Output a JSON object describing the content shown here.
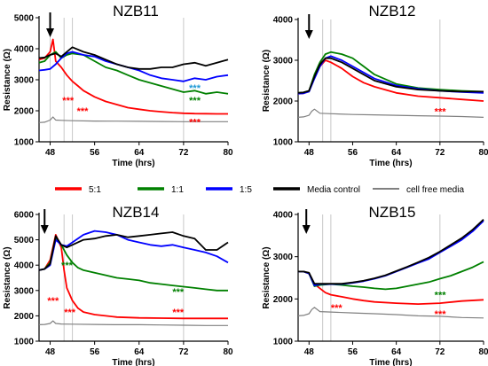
{
  "legend": {
    "items": [
      {
        "label": "5:1",
        "color": "#ff0000"
      },
      {
        "label": "1:1",
        "color": "#008000"
      },
      {
        "label": "1:5",
        "color": "#0000ff"
      },
      {
        "label": "Media control",
        "color": "#000000"
      },
      {
        "label": "cell free media",
        "color": "#808080"
      }
    ]
  },
  "chart_data": [
    {
      "type": "line",
      "title": "NZB11",
      "xlabel": "Time (hrs)",
      "ylabel": "Resistance (Ω)",
      "xlim": [
        46,
        80
      ],
      "ylim": [
        1000,
        5000
      ],
      "xticks": [
        48,
        56,
        64,
        72,
        80
      ],
      "yticks": [
        1000,
        2000,
        3000,
        4000,
        5000
      ],
      "grid": false,
      "vlines": [
        48,
        50.5,
        52,
        72
      ],
      "arrow_at_x": 48,
      "series": [
        {
          "name": "5:1",
          "color": "#ff0000",
          "x": [
            46,
            47,
            48,
            48.5,
            49,
            49.5,
            50,
            51,
            52,
            53,
            54,
            56,
            58,
            60,
            62,
            64,
            66,
            68,
            70,
            72,
            74,
            76,
            78,
            80
          ],
          "y": [
            3650,
            3700,
            3900,
            4300,
            3600,
            3500,
            3400,
            3150,
            2950,
            2800,
            2650,
            2450,
            2300,
            2200,
            2100,
            2050,
            2000,
            1970,
            1940,
            1920,
            1910,
            1905,
            1900,
            1900
          ]
        },
        {
          "name": "1:1",
          "color": "#008000",
          "x": [
            46,
            47,
            48,
            49,
            50,
            51,
            52,
            54,
            56,
            58,
            60,
            62,
            64,
            66,
            68,
            70,
            72,
            74,
            76,
            78,
            80
          ],
          "y": [
            3550,
            3600,
            3800,
            3900,
            3700,
            3800,
            3850,
            3800,
            3600,
            3400,
            3300,
            3150,
            3000,
            2900,
            2800,
            2700,
            2600,
            2650,
            2550,
            2600,
            2550
          ]
        },
        {
          "name": "1:5",
          "color": "#0000ff",
          "x": [
            46,
            47,
            48,
            49,
            50,
            51,
            52,
            53,
            54,
            56,
            58,
            60,
            62,
            64,
            66,
            68,
            70,
            72,
            74,
            76,
            78,
            80
          ],
          "y": [
            3300,
            3320,
            3350,
            3500,
            3700,
            3850,
            3900,
            3850,
            3800,
            3750,
            3600,
            3500,
            3400,
            3300,
            3150,
            3050,
            3000,
            2950,
            3050,
            3000,
            3100,
            3150
          ]
        },
        {
          "name": "Media control",
          "color": "#000000",
          "x": [
            46,
            47,
            48,
            49,
            50,
            51,
            52,
            54,
            56,
            58,
            60,
            62,
            64,
            66,
            68,
            70,
            72,
            74,
            76,
            78,
            80
          ],
          "y": [
            3700,
            3720,
            3800,
            3850,
            3750,
            3900,
            4050,
            3900,
            3800,
            3650,
            3500,
            3400,
            3350,
            3350,
            3400,
            3400,
            3500,
            3550,
            3450,
            3550,
            3650
          ]
        },
        {
          "name": "cell free media",
          "color": "#808080",
          "x": [
            46,
            47,
            48,
            48.5,
            49,
            50,
            52,
            56,
            60,
            64,
            68,
            72,
            76,
            80
          ],
          "y": [
            1620,
            1630,
            1700,
            1800,
            1700,
            1690,
            1680,
            1670,
            1665,
            1660,
            1655,
            1650,
            1650,
            1650
          ]
        }
      ],
      "annotations": [
        {
          "text": "***",
          "x": 50.2,
          "y": 2350,
          "color": "#ff0000"
        },
        {
          "text": "***",
          "x": 52.8,
          "y": 2000,
          "color": "#ff0000"
        },
        {
          "text": "***",
          "x": 73,
          "y": 2750,
          "color": "#1f9ad6"
        },
        {
          "text": "***",
          "x": 73,
          "y": 2350,
          "color": "#008000"
        },
        {
          "text": "***",
          "x": 73,
          "y": 1650,
          "color": "#ff0000"
        }
      ]
    },
    {
      "type": "line",
      "title": "NZB12",
      "xlabel": "Time (hrs)",
      "ylabel": "Resistance (Ω)",
      "xlim": [
        46,
        80
      ],
      "ylim": [
        1000,
        4000
      ],
      "xticks": [
        48,
        56,
        64,
        72,
        80
      ],
      "yticks": [
        1000,
        2000,
        3000,
        4000
      ],
      "grid": false,
      "vlines": [
        50.5,
        52,
        72
      ],
      "arrow_at_x": 48,
      "series": [
        {
          "name": "5:1",
          "color": "#ff0000",
          "x": [
            46,
            47,
            48,
            49,
            50,
            51,
            52,
            54,
            56,
            58,
            60,
            64,
            68,
            72,
            76,
            80
          ],
          "y": [
            2180,
            2190,
            2250,
            2600,
            2850,
            3000,
            2950,
            2800,
            2600,
            2450,
            2350,
            2200,
            2120,
            2080,
            2040,
            2000
          ]
        },
        {
          "name": "1:1",
          "color": "#008000",
          "x": [
            46,
            47,
            48,
            49,
            50,
            51,
            52,
            54,
            56,
            58,
            60,
            64,
            68,
            72,
            76,
            80
          ],
          "y": [
            2200,
            2210,
            2250,
            2650,
            2950,
            3150,
            3200,
            3150,
            3050,
            2850,
            2650,
            2420,
            2320,
            2280,
            2250,
            2230
          ]
        },
        {
          "name": "1:5",
          "color": "#0000ff",
          "x": [
            46,
            47,
            48,
            49,
            50,
            51,
            52,
            54,
            56,
            58,
            60,
            64,
            68,
            72,
            76,
            80
          ],
          "y": [
            2180,
            2190,
            2230,
            2550,
            2850,
            3050,
            3100,
            3000,
            2850,
            2700,
            2550,
            2380,
            2300,
            2250,
            2220,
            2200
          ]
        },
        {
          "name": "Media control",
          "color": "#000000",
          "x": [
            46,
            47,
            48,
            49,
            50,
            51,
            52,
            54,
            56,
            58,
            60,
            64,
            68,
            72,
            76,
            80
          ],
          "y": [
            2200,
            2210,
            2250,
            2600,
            2900,
            3050,
            3050,
            2950,
            2800,
            2650,
            2500,
            2350,
            2280,
            2250,
            2230,
            2230
          ]
        },
        {
          "name": "cell free media",
          "color": "#808080",
          "x": [
            46,
            47,
            48,
            48.5,
            49,
            50,
            52,
            56,
            60,
            64,
            68,
            72,
            76,
            80
          ],
          "y": [
            1600,
            1610,
            1650,
            1750,
            1800,
            1700,
            1690,
            1670,
            1660,
            1650,
            1640,
            1630,
            1620,
            1600
          ]
        }
      ],
      "annotations": [
        {
          "text": "***",
          "x": 71,
          "y": 1750,
          "color": "#ff0000"
        }
      ]
    },
    {
      "type": "line",
      "title": "NZB14",
      "xlabel": "Time (hrs)",
      "ylabel": "Resistance (Ω)",
      "xlim": [
        46,
        80
      ],
      "ylim": [
        1000,
        6000
      ],
      "xticks": [
        48,
        56,
        64,
        72,
        80
      ],
      "yticks": [
        1000,
        2000,
        3000,
        4000,
        5000,
        6000
      ],
      "grid": false,
      "vlines": [
        50.5,
        52,
        72
      ],
      "arrow_at_x": 47,
      "series": [
        {
          "name": "5:1",
          "color": "#ff0000",
          "x": [
            46,
            47,
            48,
            49,
            50,
            50.5,
            51,
            52,
            53,
            54,
            56,
            58,
            60,
            64,
            68,
            72,
            76,
            80
          ],
          "y": [
            3800,
            3850,
            4200,
            5200,
            4700,
            3800,
            3100,
            2600,
            2300,
            2150,
            2050,
            2000,
            1950,
            1920,
            1910,
            1900,
            1900,
            1900
          ]
        },
        {
          "name": "1:1",
          "color": "#008000",
          "x": [
            46,
            47,
            48,
            49,
            50,
            51,
            52,
            53,
            54,
            56,
            58,
            60,
            62,
            64,
            66,
            68,
            70,
            72,
            74,
            76,
            78,
            80
          ],
          "y": [
            3800,
            3850,
            4100,
            5100,
            4800,
            4400,
            4100,
            3900,
            3800,
            3700,
            3600,
            3500,
            3450,
            3400,
            3300,
            3250,
            3200,
            3150,
            3100,
            3050,
            3000,
            3000
          ]
        },
        {
          "name": "1:5",
          "color": "#0000ff",
          "x": [
            46,
            47,
            48,
            49,
            50,
            51,
            52,
            54,
            56,
            58,
            60,
            62,
            64,
            66,
            68,
            70,
            72,
            74,
            76,
            78,
            80
          ],
          "y": [
            3800,
            3850,
            4000,
            5000,
            4800,
            4750,
            4900,
            5200,
            5350,
            5300,
            5200,
            5000,
            4900,
            4800,
            4750,
            4800,
            4700,
            4600,
            4500,
            4350,
            4100
          ]
        },
        {
          "name": "Media control",
          "color": "#000000",
          "x": [
            46,
            47,
            48,
            49,
            50,
            51,
            52,
            54,
            56,
            58,
            60,
            62,
            64,
            66,
            68,
            70,
            72,
            74,
            76,
            78,
            80
          ],
          "y": [
            3800,
            3850,
            4050,
            5150,
            4800,
            4700,
            4800,
            5000,
            5050,
            5150,
            5200,
            5100,
            5150,
            5200,
            5250,
            5300,
            5150,
            5050,
            4600,
            4600,
            4900
          ]
        },
        {
          "name": "cell free media",
          "color": "#808080",
          "x": [
            46,
            47,
            48,
            48.5,
            49,
            50,
            52,
            56,
            60,
            64,
            68,
            72,
            76,
            80
          ],
          "y": [
            1650,
            1660,
            1700,
            1800,
            1700,
            1680,
            1670,
            1660,
            1650,
            1650,
            1640,
            1630,
            1620,
            1620
          ]
        }
      ],
      "annotations": [
        {
          "text": "***",
          "x": 50,
          "y": 4000,
          "color": "#008000"
        },
        {
          "text": "***",
          "x": 47.5,
          "y": 2600,
          "color": "#ff0000"
        },
        {
          "text": "***",
          "x": 50.5,
          "y": 2150,
          "color": "#ff0000"
        },
        {
          "text": "***",
          "x": 70,
          "y": 2950,
          "color": "#008000"
        },
        {
          "text": "***",
          "x": 70,
          "y": 2150,
          "color": "#ff0000"
        }
      ]
    },
    {
      "type": "line",
      "title": "NZB15",
      "xlabel": "Time (hrs)",
      "ylabel": "Resistance (Ω)",
      "xlim": [
        46,
        80
      ],
      "ylim": [
        1000,
        4000
      ],
      "xticks": [
        48,
        56,
        64,
        72,
        80
      ],
      "yticks": [
        1000,
        2000,
        3000,
        4000
      ],
      "grid": false,
      "vlines": [
        50.5,
        52,
        72
      ],
      "arrow_at_x": 47.5,
      "series": [
        {
          "name": "5:1",
          "color": "#ff0000",
          "x": [
            46,
            47,
            48,
            49,
            50,
            51,
            52,
            54,
            56,
            58,
            60,
            64,
            68,
            72,
            76,
            80
          ],
          "y": [
            2650,
            2650,
            2600,
            2350,
            2250,
            2150,
            2100,
            2050,
            2000,
            1960,
            1930,
            1900,
            1880,
            1900,
            1950,
            1980
          ]
        },
        {
          "name": "1:1",
          "color": "#008000",
          "x": [
            46,
            47,
            48,
            49,
            50,
            52,
            54,
            56,
            58,
            60,
            62,
            64,
            66,
            68,
            70,
            72,
            74,
            76,
            78,
            80
          ],
          "y": [
            2650,
            2650,
            2600,
            2300,
            2330,
            2350,
            2330,
            2300,
            2280,
            2250,
            2230,
            2250,
            2300,
            2350,
            2400,
            2480,
            2550,
            2650,
            2750,
            2880
          ]
        },
        {
          "name": "1:5",
          "color": "#0000ff",
          "x": [
            46,
            47,
            48,
            49,
            50,
            52,
            54,
            56,
            58,
            60,
            62,
            64,
            66,
            68,
            70,
            72,
            74,
            76,
            78,
            80
          ],
          "y": [
            2650,
            2650,
            2600,
            2320,
            2350,
            2350,
            2350,
            2380,
            2420,
            2480,
            2550,
            2650,
            2750,
            2850,
            2950,
            3100,
            3250,
            3400,
            3600,
            3850
          ]
        },
        {
          "name": "Media control",
          "color": "#000000",
          "x": [
            46,
            47,
            48,
            49,
            50,
            52,
            54,
            56,
            58,
            60,
            62,
            64,
            66,
            68,
            70,
            72,
            74,
            76,
            78,
            80
          ],
          "y": [
            2650,
            2650,
            2620,
            2360,
            2360,
            2360,
            2360,
            2390,
            2430,
            2490,
            2560,
            2660,
            2760,
            2870,
            2980,
            3120,
            3280,
            3440,
            3640,
            3880
          ]
        },
        {
          "name": "cell free media",
          "color": "#808080",
          "x": [
            46,
            47,
            48,
            48.5,
            49,
            50,
            52,
            56,
            60,
            64,
            68,
            72,
            76,
            80
          ],
          "y": [
            1600,
            1610,
            1650,
            1750,
            1800,
            1700,
            1690,
            1670,
            1650,
            1630,
            1600,
            1590,
            1560,
            1550
          ]
        }
      ],
      "annotations": [
        {
          "text": "***",
          "x": 52,
          "y": 1800,
          "color": "#ff0000"
        },
        {
          "text": "***",
          "x": 71,
          "y": 2100,
          "color": "#008000"
        },
        {
          "text": "***",
          "x": 71,
          "y": 1650,
          "color": "#ff0000"
        }
      ]
    }
  ]
}
